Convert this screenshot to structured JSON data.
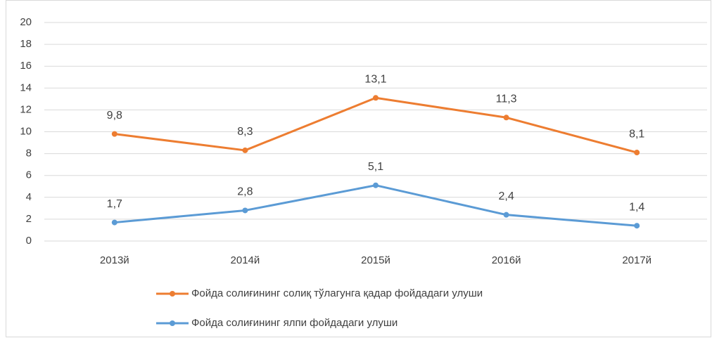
{
  "chart_data": {
    "type": "line",
    "categories": [
      "2013й",
      "2014й",
      "2015й",
      "2016й",
      "2017й"
    ],
    "series": [
      {
        "name": "Фойда солиғининг солиқ тўлагунга қадар фойдадаги улуши",
        "color": "#ed7d31",
        "values": [
          9.8,
          8.3,
          13.1,
          11.3,
          8.1
        ],
        "value_labels": [
          "9,8",
          "8,3",
          "13,1",
          "11,3",
          "8,1"
        ]
      },
      {
        "name": "Фойда солиғининг ялпи фойдадаги улуши",
        "color": "#5b9bd5",
        "values": [
          1.7,
          2.8,
          5.1,
          2.4,
          1.4
        ],
        "value_labels": [
          "1,7",
          "2,8",
          "5,1",
          "2,4",
          "1,4"
        ]
      }
    ],
    "ylim": [
      0,
      20
    ],
    "yticks": [
      0,
      2,
      4,
      6,
      8,
      10,
      12,
      14,
      16,
      18,
      20
    ],
    "grid": true
  }
}
